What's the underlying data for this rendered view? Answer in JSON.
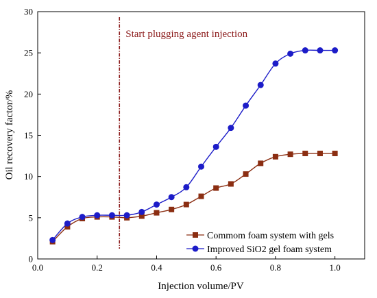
{
  "chart_data": {
    "type": "line",
    "title": "",
    "xlabel": "Injection volume/PV",
    "ylabel": "Oil recovery factor/%",
    "xlim": [
      0.0,
      1.1
    ],
    "ylim": [
      0,
      30
    ],
    "xticks": [
      0.0,
      0.2,
      0.4,
      0.6,
      0.8,
      1.0
    ],
    "xtick_labels": [
      "0.0",
      "0.2",
      "0.4",
      "0.6",
      "0.8",
      "1.0"
    ],
    "yticks": [
      0,
      5,
      10,
      15,
      20,
      25,
      30
    ],
    "ytick_labels": [
      "0",
      "5",
      "10",
      "15",
      "20",
      "25",
      "30"
    ],
    "grid": false,
    "legend_position": "bottom-right",
    "annotation": {
      "text": "Start plugging agent injection",
      "x": 0.275,
      "color": "#8b1a1a"
    },
    "series": [
      {
        "name": "Commom foam system with gels",
        "marker": "square",
        "color": "#8b2e12",
        "x": [
          0.05,
          0.1,
          0.15,
          0.2,
          0.25,
          0.3,
          0.35,
          0.4,
          0.45,
          0.5,
          0.55,
          0.6,
          0.65,
          0.7,
          0.75,
          0.8,
          0.85,
          0.9,
          0.95,
          1.0
        ],
        "y": [
          2.1,
          3.9,
          4.9,
          5.1,
          5.1,
          5.0,
          5.2,
          5.6,
          6.0,
          6.6,
          7.6,
          8.6,
          9.1,
          10.3,
          11.6,
          12.4,
          12.7,
          12.8,
          12.8,
          12.8
        ]
      },
      {
        "name": "Improved SiO2 gel foam system",
        "marker": "circle",
        "color": "#1c1cc8",
        "x": [
          0.05,
          0.1,
          0.15,
          0.2,
          0.25,
          0.3,
          0.35,
          0.4,
          0.45,
          0.5,
          0.55,
          0.6,
          0.65,
          0.7,
          0.75,
          0.8,
          0.85,
          0.9,
          0.95,
          1.0
        ],
        "y": [
          2.3,
          4.3,
          5.1,
          5.3,
          5.3,
          5.3,
          5.7,
          6.6,
          7.5,
          8.7,
          11.2,
          13.6,
          15.9,
          18.6,
          21.1,
          23.7,
          24.9,
          25.3,
          25.3,
          25.3
        ]
      }
    ]
  }
}
